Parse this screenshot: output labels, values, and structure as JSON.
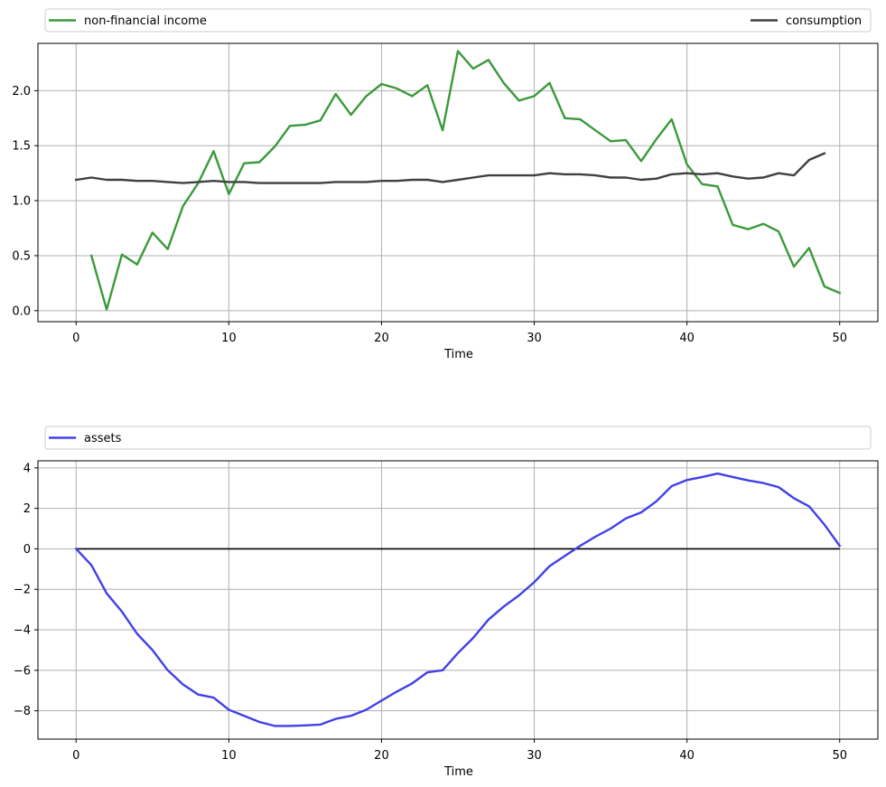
{
  "chart_data": [
    {
      "type": "line",
      "title": "",
      "xlabel": "Time",
      "ylabel": "",
      "xlim": [
        -2.5,
        52.5
      ],
      "ylim": [
        -0.1,
        2.43
      ],
      "xticks": [
        "0",
        "10",
        "20",
        "30",
        "40",
        "50"
      ],
      "yticks": [
        "0.0",
        "0.5",
        "1.0",
        "1.5",
        "2.0"
      ],
      "grid": true,
      "legend_position": "above-plot",
      "series": [
        {
          "name": "non-financial income",
          "color": "#3a9a3a",
          "x": [
            1,
            2,
            3,
            4,
            5,
            6,
            7,
            8,
            9,
            10,
            11,
            12,
            13,
            14,
            15,
            16,
            17,
            18,
            19,
            20,
            21,
            22,
            23,
            24,
            25,
            26,
            27,
            28,
            29,
            30,
            31,
            32,
            33,
            34,
            35,
            36,
            37,
            38,
            39,
            40,
            41,
            42,
            43,
            44,
            45,
            46,
            47,
            48,
            49,
            50
          ],
          "values": [
            0.5,
            0.01,
            0.51,
            0.42,
            0.71,
            0.56,
            0.95,
            1.16,
            1.45,
            1.06,
            1.34,
            1.35,
            1.49,
            1.68,
            1.69,
            1.73,
            1.97,
            1.78,
            1.95,
            2.06,
            2.02,
            1.95,
            2.05,
            1.64,
            2.36,
            2.2,
            2.28,
            2.07,
            1.91,
            1.95,
            2.07,
            1.75,
            1.74,
            1.64,
            1.54,
            1.55,
            1.36,
            1.56,
            1.74,
            1.33,
            1.15,
            1.13,
            0.78,
            0.74,
            0.79,
            0.72,
            0.4,
            0.57,
            0.22,
            0.16
          ]
        },
        {
          "name": "consumption",
          "color": "#404040",
          "x": [
            0,
            1,
            2,
            3,
            4,
            5,
            6,
            7,
            8,
            9,
            10,
            11,
            12,
            13,
            14,
            15,
            16,
            17,
            18,
            19,
            20,
            21,
            22,
            23,
            24,
            25,
            26,
            27,
            28,
            29,
            30,
            31,
            32,
            33,
            34,
            35,
            36,
            37,
            38,
            39,
            40,
            41,
            42,
            43,
            44,
            45,
            46,
            47,
            48,
            49
          ],
          "values": [
            1.19,
            1.21,
            1.19,
            1.19,
            1.18,
            1.18,
            1.17,
            1.16,
            1.17,
            1.18,
            1.17,
            1.17,
            1.16,
            1.16,
            1.16,
            1.16,
            1.16,
            1.17,
            1.17,
            1.17,
            1.18,
            1.18,
            1.19,
            1.19,
            1.17,
            1.19,
            1.21,
            1.23,
            1.23,
            1.23,
            1.23,
            1.25,
            1.24,
            1.24,
            1.23,
            1.21,
            1.21,
            1.19,
            1.2,
            1.24,
            1.25,
            1.24,
            1.25,
            1.22,
            1.2,
            1.21,
            1.25,
            1.23,
            1.37,
            1.43
          ]
        }
      ]
    },
    {
      "type": "line",
      "title": "",
      "xlabel": "Time",
      "ylabel": "",
      "xlim": [
        -2.5,
        52.5
      ],
      "ylim": [
        -9.4,
        4.35
      ],
      "xticks": [
        "0",
        "10",
        "20",
        "30",
        "40",
        "50"
      ],
      "yticks": [
        "−8",
        "−6",
        "−4",
        "−2",
        "0",
        "2",
        "4"
      ],
      "grid": true,
      "legend_position": "above-plot",
      "reference_line": {
        "y": 0,
        "color": "#000000"
      },
      "series": [
        {
          "name": "assets",
          "color": "#4040e8",
          "x": [
            0,
            1,
            2,
            3,
            4,
            5,
            6,
            7,
            8,
            9,
            10,
            11,
            12,
            13,
            14,
            15,
            16,
            17,
            18,
            19,
            20,
            21,
            22,
            23,
            24,
            25,
            26,
            27,
            28,
            29,
            30,
            31,
            32,
            33,
            34,
            35,
            36,
            37,
            38,
            39,
            40,
            41,
            42,
            43,
            44,
            45,
            46,
            47,
            48,
            49,
            50
          ],
          "values": [
            0.0,
            -0.8,
            -2.2,
            -3.1,
            -4.2,
            -5.0,
            -6.0,
            -6.7,
            -7.2,
            -7.35,
            -7.95,
            -8.25,
            -8.55,
            -8.75,
            -8.75,
            -8.72,
            -8.68,
            -8.4,
            -8.25,
            -7.95,
            -7.5,
            -7.05,
            -6.65,
            -6.1,
            -6.0,
            -5.15,
            -4.4,
            -3.5,
            -2.85,
            -2.3,
            -1.65,
            -0.85,
            -0.35,
            0.15,
            0.6,
            1.0,
            1.5,
            1.8,
            2.35,
            3.1,
            3.4,
            3.55,
            3.72,
            3.55,
            3.38,
            3.25,
            3.05,
            2.5,
            2.1,
            1.2,
            0.15
          ]
        }
      ]
    }
  ]
}
